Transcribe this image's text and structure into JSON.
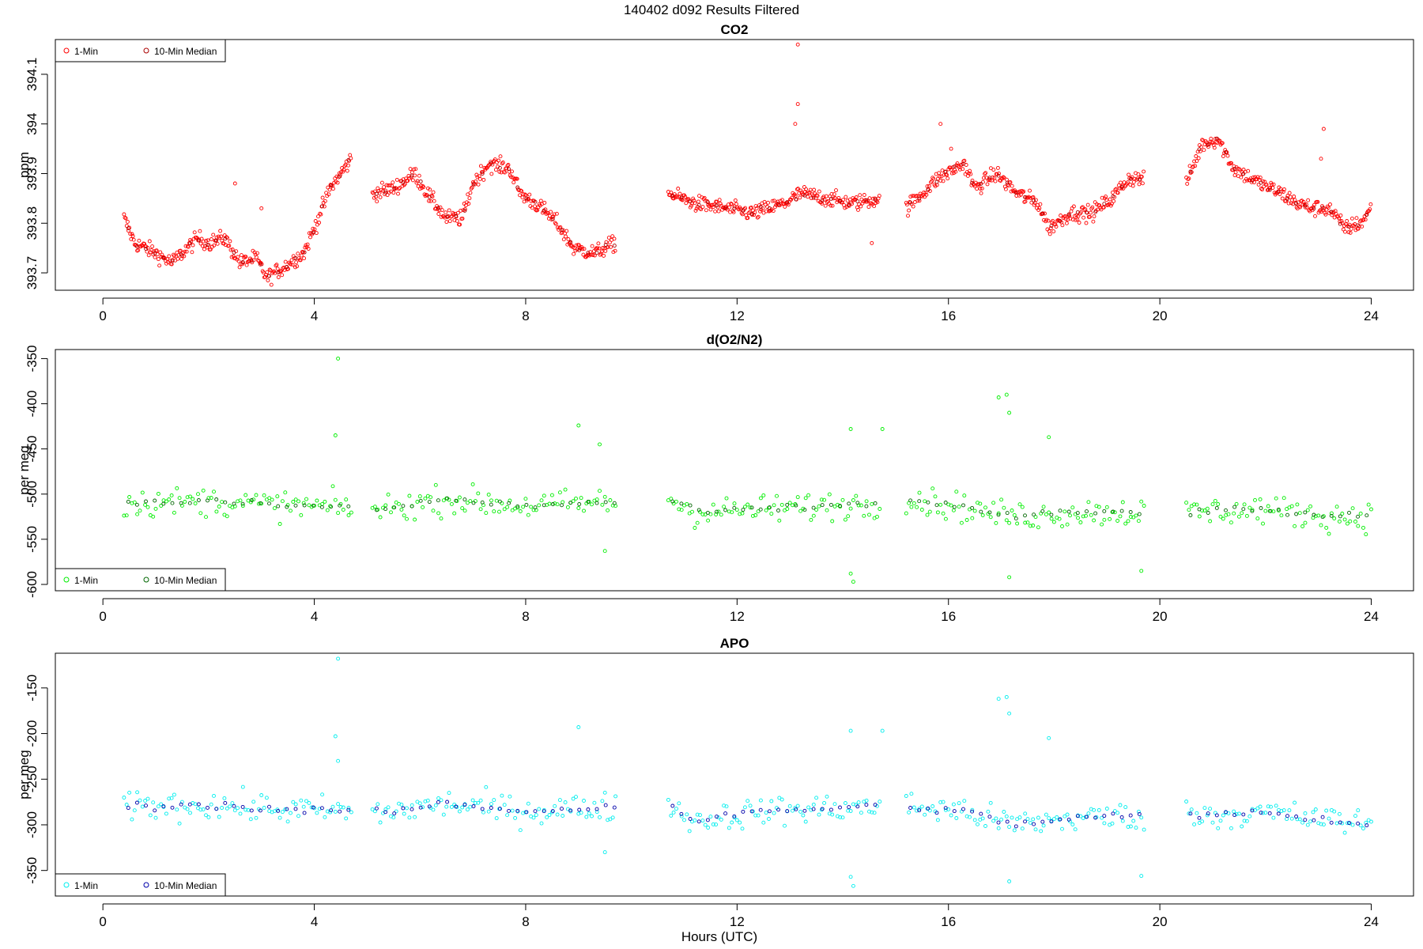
{
  "figure": {
    "title": "140402   d092   Results Filtered",
    "xlabel": "Hours (UTC)"
  },
  "chart_data": [
    {
      "type": "scatter",
      "title": "CO2",
      "ylabel": "ppm",
      "xlim": [
        -0.9,
        24.8
      ],
      "ylim": [
        393.665,
        394.17
      ],
      "xticks": [
        0,
        4,
        8,
        12,
        16,
        20,
        24
      ],
      "yticks": [
        393.7,
        393.8,
        393.9,
        394.0,
        394.1
      ],
      "grid": false,
      "legend": {
        "position": "top-left",
        "entries": [
          "1-Min",
          "10-Min Median"
        ]
      },
      "series": [
        {
          "name": "1-Min",
          "color": "#ff0000",
          "segments": [
            {
              "x_range": [
                0.4,
                4.7
              ],
              "anchors": [
                [
                  0.4,
                  393.81
                ],
                [
                  0.6,
                  393.76
                ],
                [
                  1.0,
                  393.74
                ],
                [
                  1.3,
                  393.72
                ],
                [
                  1.6,
                  393.75
                ],
                [
                  1.8,
                  393.77
                ],
                [
                  2.0,
                  393.76
                ],
                [
                  2.3,
                  393.77
                ],
                [
                  2.6,
                  393.72
                ],
                [
                  2.9,
                  393.73
                ],
                [
                  3.1,
                  393.69
                ],
                [
                  3.4,
                  393.71
                ],
                [
                  3.8,
                  393.74
                ],
                [
                  4.0,
                  393.79
                ],
                [
                  4.3,
                  393.87
                ],
                [
                  4.7,
                  393.93
                ]
              ]
            },
            {
              "x_range": [
                5.1,
                9.7
              ],
              "anchors": [
                [
                  5.1,
                  393.86
                ],
                [
                  5.5,
                  393.87
                ],
                [
                  5.9,
                  393.9
                ],
                [
                  6.2,
                  393.85
                ],
                [
                  6.5,
                  393.81
                ],
                [
                  6.8,
                  393.81
                ],
                [
                  7.0,
                  393.88
                ],
                [
                  7.3,
                  393.92
                ],
                [
                  7.7,
                  393.91
                ],
                [
                  7.9,
                  393.86
                ],
                [
                  8.3,
                  393.83
                ],
                [
                  8.6,
                  393.8
                ],
                [
                  8.9,
                  393.75
                ],
                [
                  9.3,
                  393.74
                ],
                [
                  9.7,
                  393.76
                ]
              ]
            },
            {
              "x_range": [
                10.7,
                14.7
              ],
              "anchors": [
                [
                  10.7,
                  393.86
                ],
                [
                  11.2,
                  393.84
                ],
                [
                  11.8,
                  393.83
                ],
                [
                  12.3,
                  393.82
                ],
                [
                  12.9,
                  393.84
                ],
                [
                  13.2,
                  393.86
                ],
                [
                  13.7,
                  393.85
                ],
                [
                  14.2,
                  393.84
                ],
                [
                  14.7,
                  393.85
                ]
              ]
            },
            {
              "x_range": [
                15.2,
                19.7
              ],
              "anchors": [
                [
                  15.2,
                  393.83
                ],
                [
                  15.5,
                  393.86
                ],
                [
                  15.8,
                  393.89
                ],
                [
                  16.3,
                  393.92
                ],
                [
                  16.5,
                  393.87
                ],
                [
                  16.9,
                  393.9
                ],
                [
                  17.3,
                  393.86
                ],
                [
                  17.7,
                  393.84
                ],
                [
                  17.9,
                  393.79
                ],
                [
                  18.3,
                  393.82
                ],
                [
                  18.7,
                  393.82
                ],
                [
                  19.1,
                  393.85
                ],
                [
                  19.4,
                  393.89
                ],
                [
                  19.7,
                  393.89
                ]
              ]
            },
            {
              "x_range": [
                20.5,
                24.0
              ],
              "anchors": [
                [
                  20.5,
                  393.88
                ],
                [
                  20.8,
                  393.96
                ],
                [
                  21.1,
                  393.97
                ],
                [
                  21.4,
                  393.91
                ],
                [
                  21.9,
                  393.88
                ],
                [
                  22.3,
                  393.86
                ],
                [
                  22.6,
                  393.84
                ],
                [
                  22.9,
                  393.83
                ],
                [
                  23.2,
                  393.83
                ],
                [
                  23.5,
                  393.79
                ],
                [
                  23.8,
                  393.8
                ],
                [
                  24.0,
                  393.83
                ]
              ]
            }
          ],
          "outliers": [
            [
              2.5,
              393.88
            ],
            [
              3.0,
              393.83
            ],
            [
              13.15,
              394.16
            ],
            [
              13.15,
              394.04
            ],
            [
              13.1,
              394.0
            ],
            [
              14.55,
              393.76
            ],
            [
              15.85,
              394.0
            ],
            [
              16.05,
              393.95
            ],
            [
              23.1,
              393.99
            ],
            [
              23.05,
              393.93
            ]
          ]
        },
        {
          "name": "10-Min Median",
          "color": "#aa0000",
          "segments": [
            {
              "x_range": [
                0.4,
                4.7
              ]
            },
            {
              "x_range": [
                5.1,
                9.7
              ]
            },
            {
              "x_range": [
                10.7,
                14.7
              ]
            },
            {
              "x_range": [
                15.2,
                19.7
              ]
            },
            {
              "x_range": [
                20.5,
                24.0
              ]
            }
          ]
        }
      ]
    },
    {
      "type": "scatter",
      "title": "d(O2/N2)",
      "ylabel": "per meg",
      "xlim": [
        -0.9,
        24.8
      ],
      "ylim": [
        -607,
        -340
      ],
      "xticks": [
        0,
        4,
        8,
        12,
        16,
        20,
        24
      ],
      "yticks": [
        -350,
        -400,
        -450,
        -500,
        -550,
        -600
      ],
      "grid": false,
      "legend": {
        "position": "bottom-left",
        "entries": [
          "1-Min",
          "10-Min Median"
        ]
      },
      "series": [
        {
          "name": "1-Min",
          "color": "#00ee00",
          "segments": [
            {
              "x_range": [
                0.4,
                4.7
              ],
              "anchors": [
                [
                  0.4,
                  -510
                ],
                [
                  2.0,
                  -508
                ],
                [
                  3.2,
                  -512
                ],
                [
                  4.7,
                  -515
                ]
              ]
            },
            {
              "x_range": [
                5.1,
                9.7
              ],
              "anchors": [
                [
                  5.1,
                  -518
                ],
                [
                  6.5,
                  -506
                ],
                [
                  8.0,
                  -513
                ],
                [
                  9.7,
                  -509
                ]
              ]
            },
            {
              "x_range": [
                10.7,
                14.7
              ],
              "anchors": [
                [
                  10.7,
                  -505
                ],
                [
                  11.2,
                  -520
                ],
                [
                  12.5,
                  -517
                ],
                [
                  14.7,
                  -510
                ]
              ]
            },
            {
              "x_range": [
                15.2,
                19.7
              ],
              "anchors": [
                [
                  15.2,
                  -505
                ],
                [
                  16.3,
                  -515
                ],
                [
                  17.2,
                  -525
                ],
                [
                  18.5,
                  -520
                ],
                [
                  19.7,
                  -520
                ]
              ]
            },
            {
              "x_range": [
                20.5,
                24.0
              ],
              "anchors": [
                [
                  20.5,
                  -520
                ],
                [
                  22.0,
                  -517
                ],
                [
                  23.2,
                  -525
                ],
                [
                  24.0,
                  -525
                ]
              ]
            }
          ],
          "outliers": [
            [
              4.45,
              -350
            ],
            [
              4.4,
              -435
            ],
            [
              9.0,
              -424
            ],
            [
              9.4,
              -445
            ],
            [
              14.15,
              -428
            ],
            [
              14.75,
              -428
            ],
            [
              14.15,
              -588
            ],
            [
              14.2,
              -597
            ],
            [
              16.95,
              -393
            ],
            [
              17.1,
              -390
            ],
            [
              17.15,
              -410
            ],
            [
              17.9,
              -437
            ],
            [
              9.5,
              -563
            ],
            [
              19.65,
              -585
            ],
            [
              17.15,
              -592
            ]
          ]
        },
        {
          "name": "10-Min Median",
          "color": "#006600",
          "segments": [
            {
              "x_range": [
                0.4,
                4.7
              ]
            },
            {
              "x_range": [
                5.1,
                9.7
              ]
            },
            {
              "x_range": [
                10.7,
                14.7
              ]
            },
            {
              "x_range": [
                15.2,
                19.7
              ]
            },
            {
              "x_range": [
                20.5,
                24.0
              ]
            }
          ]
        }
      ]
    },
    {
      "type": "scatter",
      "title": "APO",
      "ylabel": "per meg",
      "xlim": [
        -0.9,
        24.8
      ],
      "ylim": [
        -378,
        -112
      ],
      "xticks": [
        0,
        4,
        8,
        12,
        16,
        20,
        24
      ],
      "yticks": [
        -150,
        -200,
        -250,
        -300,
        -350
      ],
      "grid": false,
      "legend": {
        "position": "bottom-left",
        "entries": [
          "1-Min",
          "10-Min Median"
        ]
      },
      "series": [
        {
          "name": "1-Min",
          "color": "#00eeee",
          "segments": [
            {
              "x_range": [
                0.4,
                4.7
              ],
              "anchors": [
                [
                  0.4,
                  -280
                ],
                [
                  2.0,
                  -278
                ],
                [
                  3.2,
                  -283
                ],
                [
                  4.7,
                  -285
                ]
              ]
            },
            {
              "x_range": [
                5.1,
                9.7
              ],
              "anchors": [
                [
                  5.1,
                  -288
                ],
                [
                  6.5,
                  -277
                ],
                [
                  8.0,
                  -285
                ],
                [
                  9.7,
                  -280
                ]
              ]
            },
            {
              "x_range": [
                10.7,
                14.7
              ],
              "anchors": [
                [
                  10.7,
                  -278
                ],
                [
                  11.2,
                  -295
                ],
                [
                  12.5,
                  -285
                ],
                [
                  14.7,
                  -280
                ]
              ]
            },
            {
              "x_range": [
                15.2,
                19.7
              ],
              "anchors": [
                [
                  15.2,
                  -280
                ],
                [
                  16.3,
                  -285
                ],
                [
                  17.2,
                  -300
                ],
                [
                  18.5,
                  -292
                ],
                [
                  19.7,
                  -290
                ]
              ]
            },
            {
              "x_range": [
                20.5,
                24.0
              ],
              "anchors": [
                [
                  20.5,
                  -290
                ],
                [
                  22.0,
                  -287
                ],
                [
                  23.2,
                  -295
                ],
                [
                  24.0,
                  -298
                ]
              ]
            }
          ],
          "outliers": [
            [
              4.45,
              -118
            ],
            [
              4.4,
              -203
            ],
            [
              4.45,
              -230
            ],
            [
              9.0,
              -193
            ],
            [
              14.15,
              -197
            ],
            [
              14.75,
              -197
            ],
            [
              14.15,
              -357
            ],
            [
              14.2,
              -367
            ],
            [
              16.95,
              -162
            ],
            [
              17.1,
              -160
            ],
            [
              17.15,
              -178
            ],
            [
              17.9,
              -205
            ],
            [
              19.65,
              -356
            ],
            [
              17.15,
              -362
            ],
            [
              9.5,
              -330
            ]
          ]
        },
        {
          "name": "10-Min Median",
          "color": "#0000aa",
          "segments": [
            {
              "x_range": [
                0.4,
                4.7
              ]
            },
            {
              "x_range": [
                5.1,
                9.7
              ]
            },
            {
              "x_range": [
                10.7,
                14.7
              ]
            },
            {
              "x_range": [
                15.2,
                19.7
              ]
            },
            {
              "x_range": [
                20.5,
                24.0
              ]
            }
          ]
        }
      ]
    }
  ]
}
